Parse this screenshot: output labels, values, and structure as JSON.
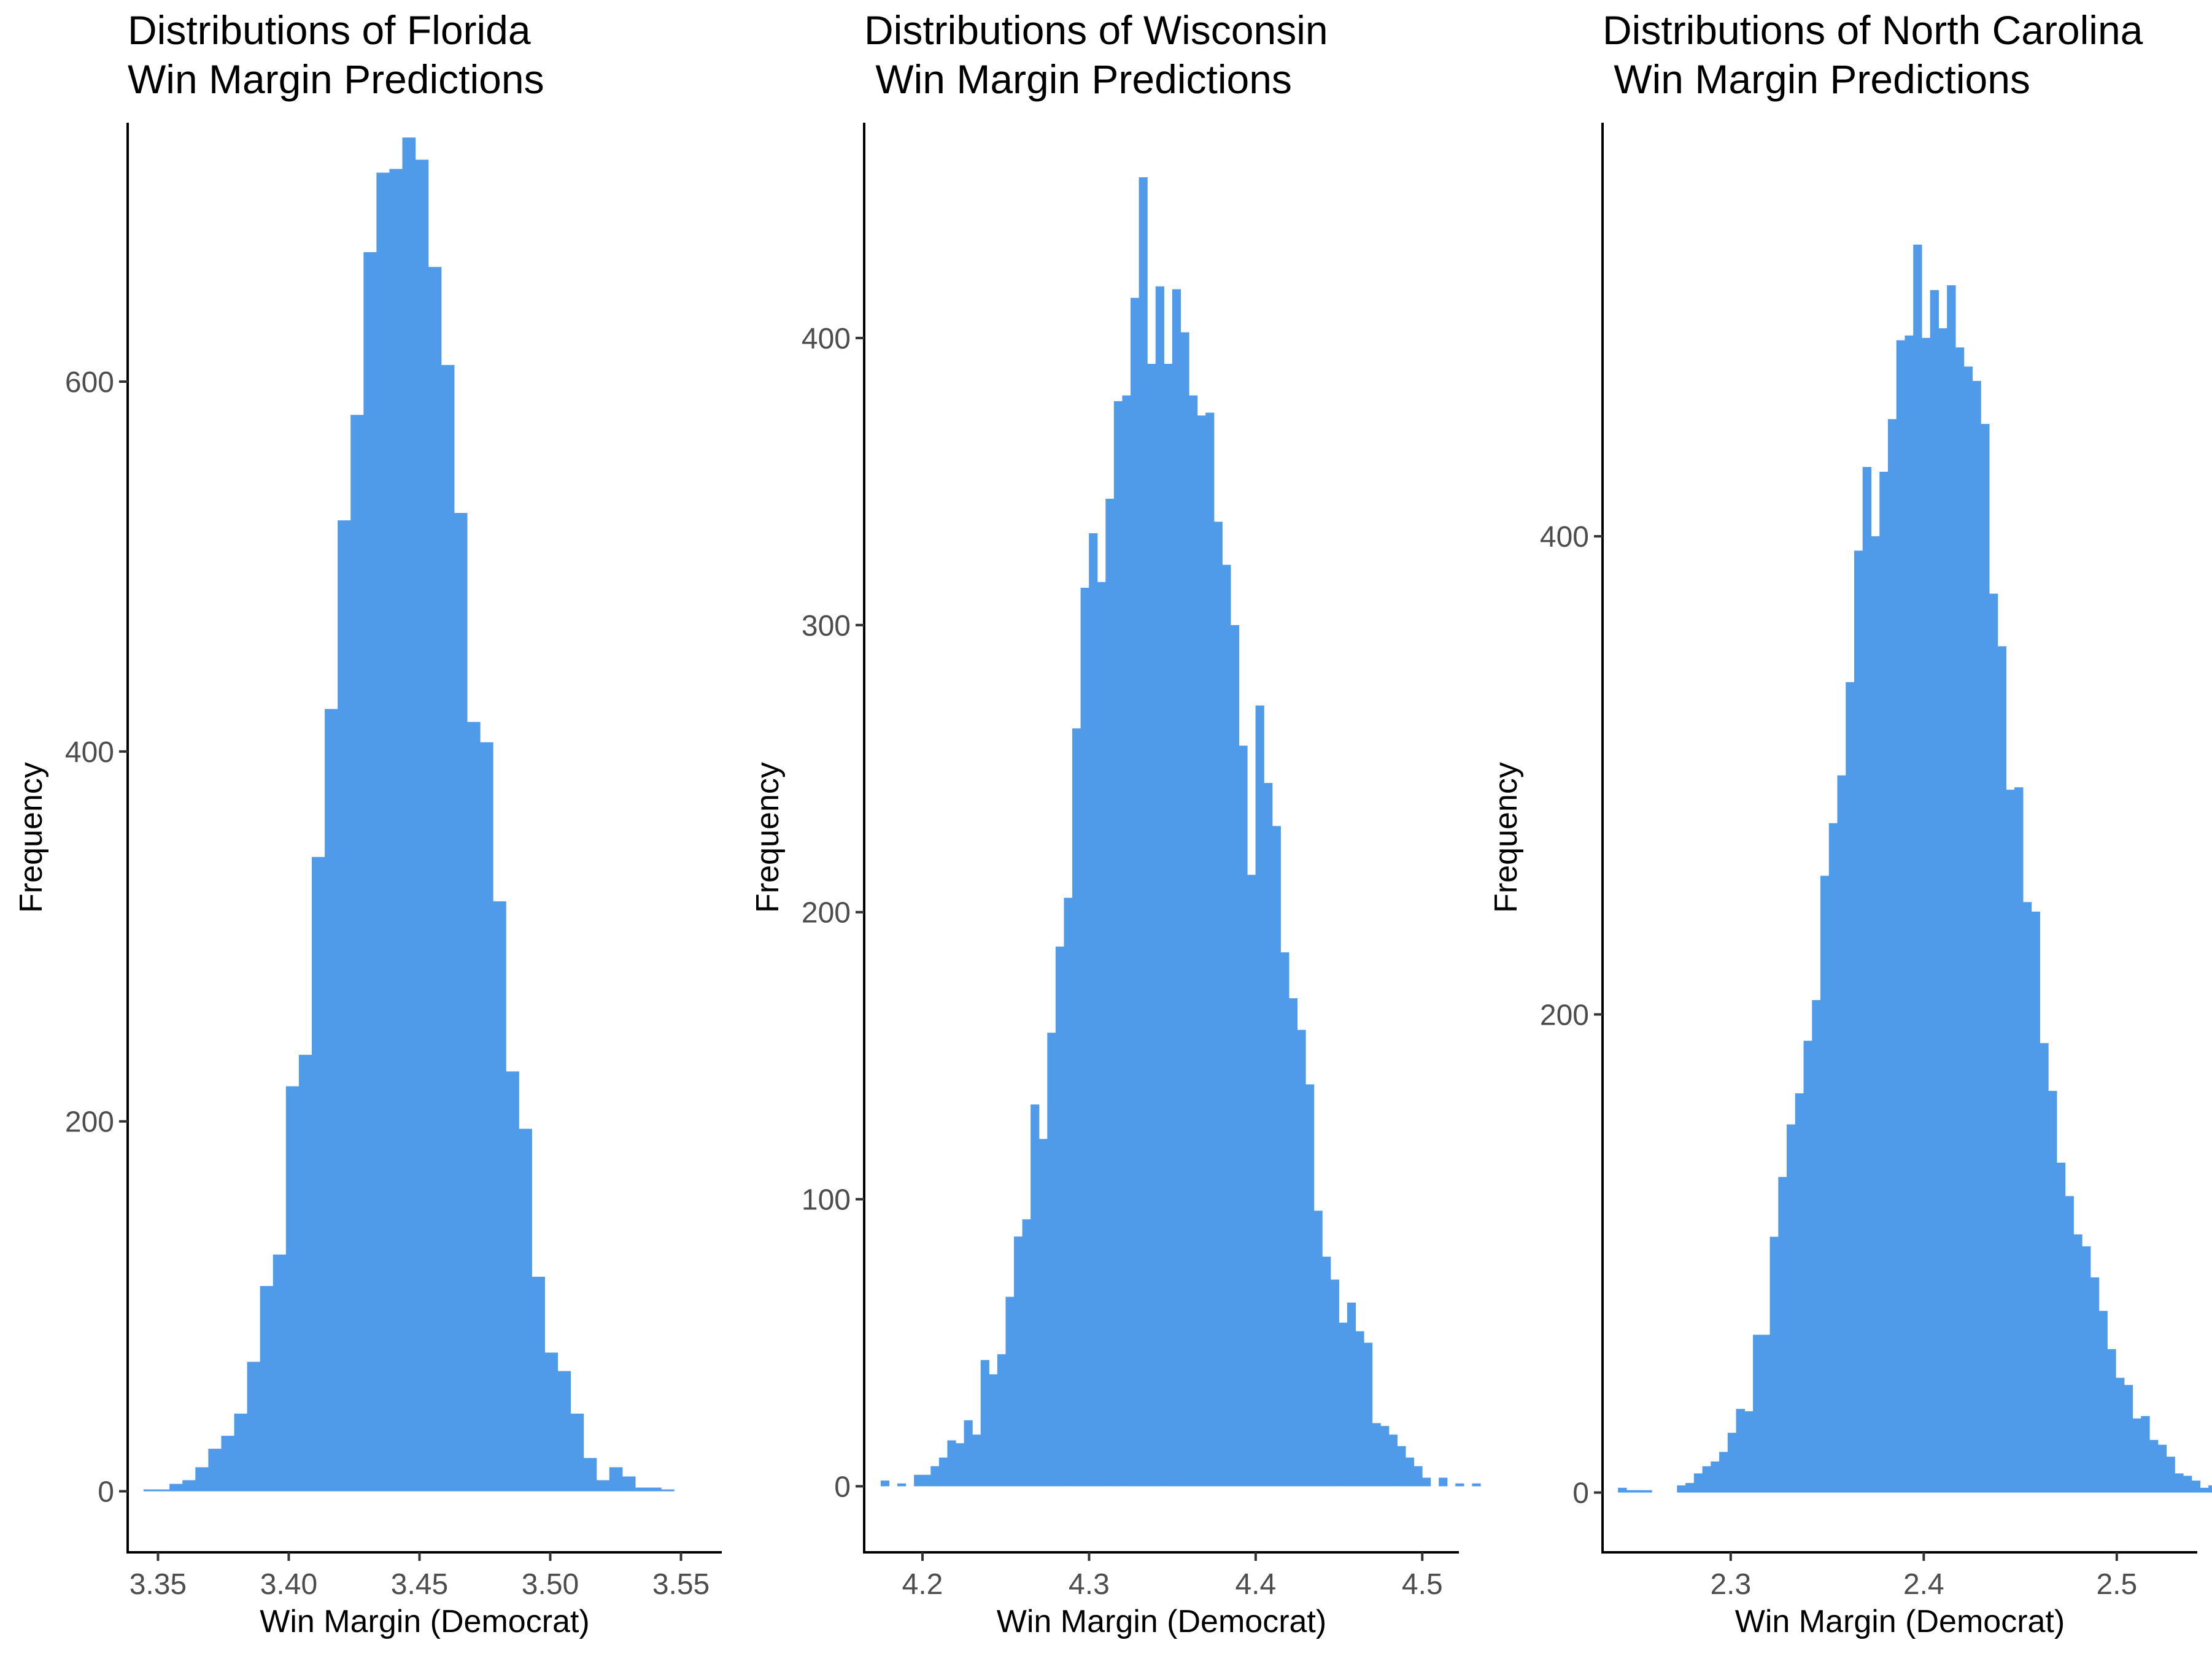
{
  "chart_data": [
    {
      "type": "bar",
      "title": [
        "Distributions of Florida",
        "Win Margin Predictions"
      ],
      "xlabel": "Win Margin (Democrat)",
      "ylabel": "Frequency",
      "xlim": [
        3.3384,
        3.5656
      ],
      "ylim": [
        -33,
        740
      ],
      "xticks": [
        3.35,
        3.4,
        3.45,
        3.5,
        3.55
      ],
      "xtick_labels": [
        "3.35",
        "3.40",
        "3.45",
        "3.50",
        "3.55"
      ],
      "yticks": [
        0,
        200,
        400,
        600
      ],
      "ytick_labels": [
        "0",
        "200",
        "400",
        "600"
      ],
      "bar_color": "#4f9be9",
      "bin_start": 3.3445,
      "bin_width": 0.004947,
      "values": [
        1,
        1,
        4,
        6,
        13,
        23,
        30,
        42,
        70,
        111,
        128,
        219,
        236,
        343,
        423,
        525,
        582,
        670,
        713,
        715,
        732,
        720,
        662,
        609,
        529,
        416,
        405,
        319,
        227,
        196,
        116,
        75,
        65,
        42,
        18,
        6,
        13,
        8,
        2,
        2,
        1
      ]
    },
    {
      "type": "bar",
      "title": [
        "Distributions of Wisconsin",
        " Win Margin Predictions"
      ],
      "xlabel": "Win Margin (Democrat)",
      "ylabel": "Frequency",
      "xlim": [
        4.165,
        4.522
      ],
      "ylim": [
        -23,
        475
      ],
      "xticks": [
        4.2,
        4.3,
        4.4,
        4.5
      ],
      "xtick_labels": [
        "4.2",
        "4.3",
        "4.4",
        "4.5"
      ],
      "yticks": [
        0,
        100,
        200,
        300,
        400
      ],
      "ytick_labels": [
        "0",
        "100",
        "200",
        "300",
        "400"
      ],
      "bar_color": "#4f9be9",
      "bin_start": 4.1749,
      "bin_width": 0.005,
      "values": [
        2,
        0,
        1,
        0,
        4,
        4,
        7,
        10,
        16,
        15,
        23,
        18,
        44,
        39,
        46,
        66,
        87,
        93,
        133,
        121,
        158,
        188,
        205,
        264,
        313,
        332,
        315,
        344,
        378,
        380,
        414,
        456,
        391,
        418,
        391,
        417,
        402,
        380,
        373,
        374,
        336,
        321,
        300,
        258,
        213,
        272,
        245,
        230,
        186,
        170,
        159,
        140,
        96,
        80,
        72,
        57,
        64,
        54,
        50,
        22,
        21,
        18,
        14,
        10,
        7,
        3,
        0,
        3,
        0,
        1,
        0,
        1
      ]
    },
    {
      "type": "bar",
      "title": [
        "Distributions of North Carolina",
        " Win Margin Predictions"
      ],
      "xlabel": "Win Margin (Democrat)",
      "ylabel": "Frequency",
      "xlim": [
        2.2336,
        2.5417
      ],
      "ylim": [
        -25,
        573
      ],
      "xticks": [
        2.3,
        2.4,
        2.5
      ],
      "xtick_labels": [
        "2.3",
        "2.4",
        "2.5"
      ],
      "yticks": [
        0,
        200,
        400
      ],
      "ytick_labels": [
        "0",
        "200",
        "400"
      ],
      "bar_color": "#4f9be9",
      "bin_start": 2.2416,
      "bin_width": 0.00437,
      "values": [
        2,
        1,
        1,
        1,
        0,
        0,
        0,
        3,
        4,
        8,
        11,
        13,
        17,
        25,
        35,
        34,
        66,
        66,
        107,
        132,
        154,
        167,
        189,
        206,
        258,
        280,
        300,
        339,
        394,
        429,
        400,
        427,
        449,
        482,
        484,
        522,
        483,
        503,
        487,
        505,
        479,
        471,
        465,
        447,
        376,
        354,
        294,
        295,
        247,
        243,
        188,
        168,
        138,
        124,
        108,
        103,
        90,
        76,
        60,
        48,
        45,
        31,
        32,
        22,
        20,
        15,
        8,
        7,
        5,
        2,
        3,
        0,
        1,
        0,
        0,
        1,
        0,
        0,
        1
      ]
    }
  ]
}
